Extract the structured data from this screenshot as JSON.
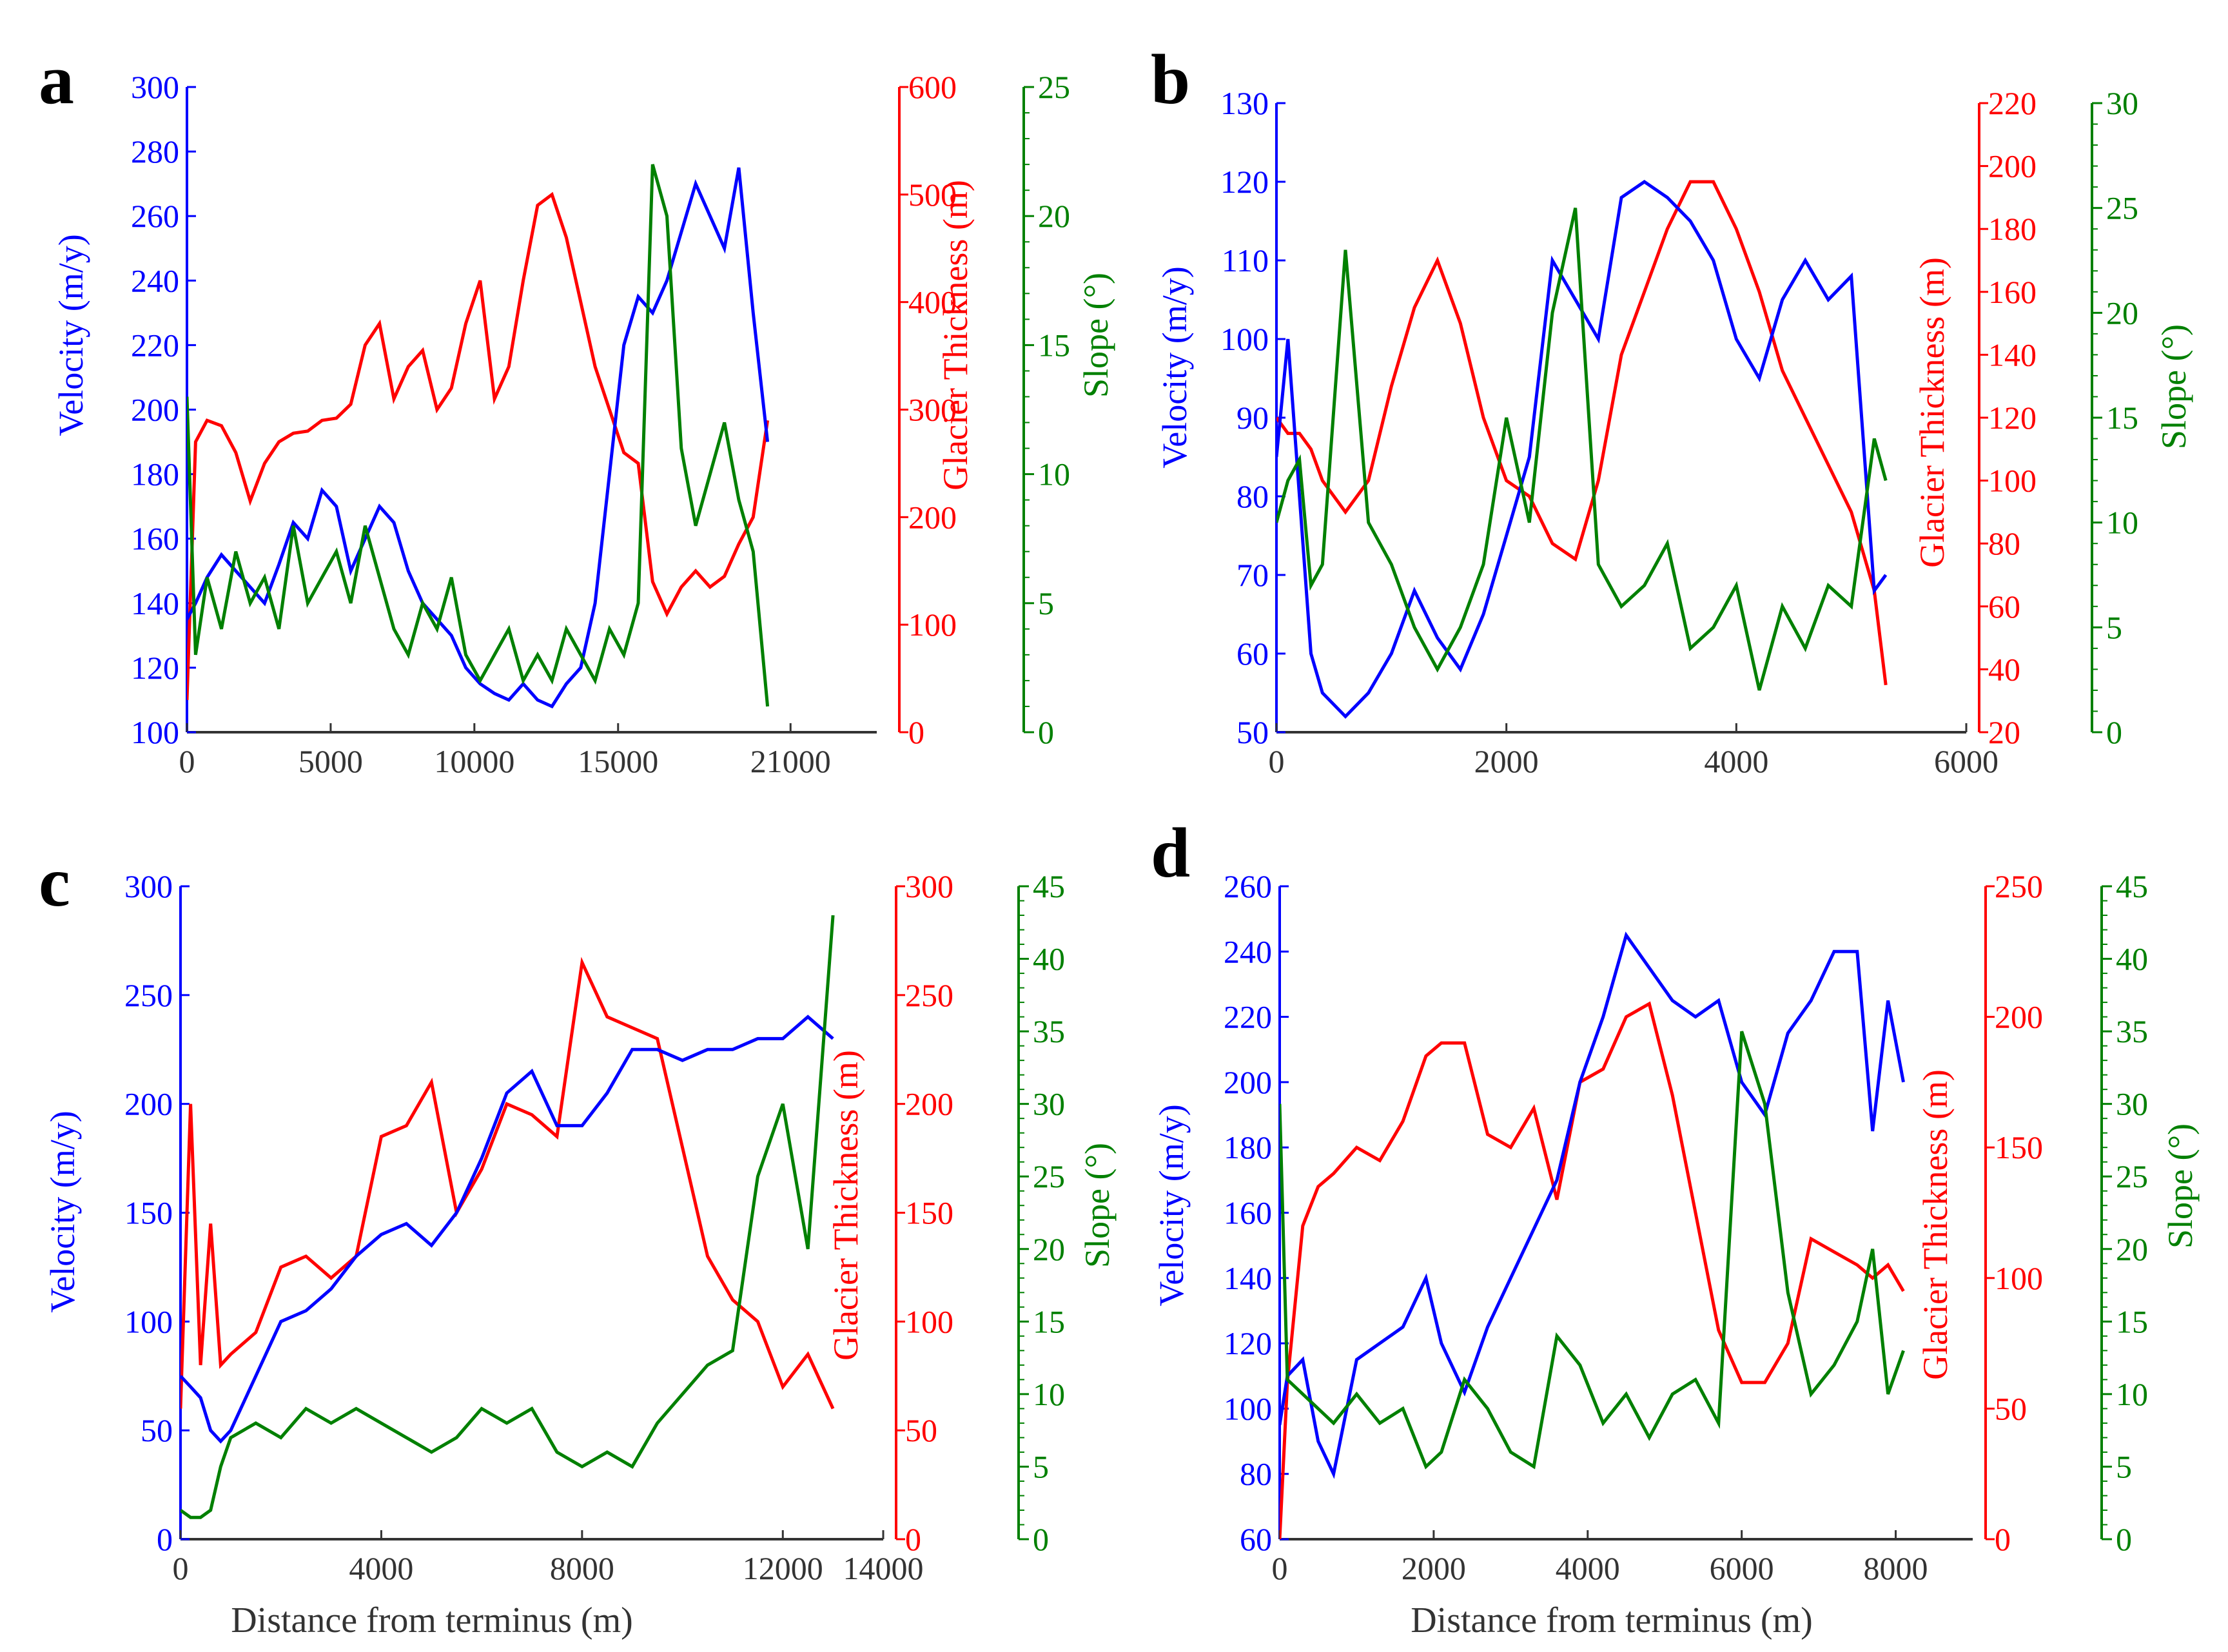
{
  "colors": {
    "velocity": "#0000ff",
    "thickness": "#ff0000",
    "slope": "#008000",
    "axis": "#333333"
  },
  "chart_data": [
    {
      "panel": "a",
      "type": "line",
      "xlabel": "",
      "x_ticks": [
        0,
        5000,
        10000,
        15000,
        21000
      ],
      "xlim": [
        0,
        24000
      ],
      "left_axis": {
        "label": "Velocity (m/y)",
        "lim": [
          100,
          300
        ],
        "ticks": [
          100,
          120,
          140,
          160,
          180,
          200,
          220,
          240,
          260,
          280,
          300
        ]
      },
      "right1_axis": {
        "label": "Glacier Thickness (m)",
        "lim": [
          0,
          600
        ],
        "ticks": [
          0,
          100,
          200,
          300,
          400,
          500,
          600
        ]
      },
      "right2_axis": {
        "label": "Slope (°)",
        "lim": [
          0,
          25
        ],
        "ticks": [
          0,
          5,
          10,
          15,
          20,
          25
        ]
      },
      "series": [
        {
          "name": "Velocity",
          "axis": "left",
          "x": [
            0,
            300,
            700,
            1200,
            1700,
            2200,
            2700,
            3200,
            3700,
            4200,
            4700,
            5200,
            5700,
            6200,
            6700,
            7200,
            7700,
            8200,
            8700,
            9200,
            9700,
            10200,
            10700,
            11200,
            11700,
            12200,
            12700,
            13200,
            13700,
            14200,
            14700,
            15200,
            15700,
            16200,
            16700,
            17200,
            17700,
            18200,
            18700,
            19200,
            19700,
            20200
          ],
          "values": [
            135,
            140,
            148,
            155,
            150,
            145,
            140,
            152,
            165,
            160,
            175,
            170,
            150,
            160,
            170,
            165,
            150,
            140,
            135,
            130,
            120,
            115,
            112,
            110,
            115,
            110,
            108,
            115,
            120,
            140,
            180,
            220,
            235,
            230,
            240,
            255,
            270,
            260,
            250,
            275,
            230,
            190
          ]
        },
        {
          "name": "Glacier Thickness",
          "axis": "right1",
          "x": [
            0,
            300,
            700,
            1200,
            1700,
            2200,
            2700,
            3200,
            3700,
            4200,
            4700,
            5200,
            5700,
            6200,
            6700,
            7200,
            7700,
            8200,
            8700,
            9200,
            9700,
            10200,
            10700,
            11200,
            11700,
            12200,
            12700,
            13200,
            13700,
            14200,
            14700,
            15200,
            15700,
            16200,
            16700,
            17200,
            17700,
            18200,
            18700,
            19200,
            19700,
            20200
          ],
          "values": [
            30,
            270,
            290,
            285,
            260,
            215,
            250,
            270,
            278,
            280,
            290,
            292,
            305,
            360,
            380,
            310,
            340,
            355,
            300,
            320,
            380,
            420,
            310,
            340,
            420,
            490,
            500,
            460,
            400,
            340,
            300,
            260,
            250,
            140,
            110,
            135,
            150,
            135,
            145,
            175,
            200,
            290
          ]
        },
        {
          "name": "Slope",
          "axis": "right2",
          "x": [
            0,
            300,
            700,
            1200,
            1700,
            2200,
            2700,
            3200,
            3700,
            4200,
            4700,
            5200,
            5700,
            6200,
            6700,
            7200,
            7700,
            8200,
            8700,
            9200,
            9700,
            10200,
            10700,
            11200,
            11700,
            12200,
            12700,
            13200,
            13700,
            14200,
            14700,
            15200,
            15700,
            16200,
            16700,
            17200,
            17700,
            18200,
            18700,
            19200,
            19700,
            20200
          ],
          "values": [
            13,
            3,
            6,
            4,
            7,
            5,
            6,
            4,
            8,
            5,
            6,
            7,
            5,
            8,
            6,
            4,
            3,
            5,
            4,
            6,
            3,
            2,
            3,
            4,
            2,
            3,
            2,
            4,
            3,
            2,
            4,
            3,
            5,
            22,
            20,
            11,
            8,
            10,
            12,
            9,
            7,
            1
          ]
        }
      ]
    },
    {
      "panel": "b",
      "type": "line",
      "xlabel": "",
      "x_ticks": [
        0,
        2000,
        4000,
        6000
      ],
      "xlim": [
        0,
        6000
      ],
      "left_axis": {
        "label": "Velocity (m/y)",
        "lim": [
          50,
          130
        ],
        "ticks": [
          50,
          60,
          70,
          80,
          90,
          100,
          110,
          120,
          130
        ]
      },
      "right1_axis": {
        "label": "Glacier Thickness (m)",
        "lim": [
          20,
          220
        ],
        "ticks": [
          20,
          40,
          60,
          80,
          100,
          120,
          140,
          160,
          180,
          200,
          220
        ]
      },
      "right2_axis": {
        "label": "Slope (°)",
        "lim": [
          0,
          30
        ],
        "ticks": [
          0,
          5,
          10,
          15,
          20,
          25,
          30
        ]
      },
      "series": [
        {
          "name": "Velocity",
          "axis": "left",
          "x": [
            0,
            100,
            200,
            300,
            400,
            600,
            800,
            1000,
            1200,
            1400,
            1600,
            1800,
            2000,
            2200,
            2400,
            2600,
            2800,
            3000,
            3200,
            3400,
            3600,
            3800,
            4000,
            4200,
            4400,
            4600,
            4800,
            5000,
            5200,
            5300
          ],
          "values": [
            85,
            100,
            80,
            60,
            55,
            52,
            55,
            60,
            68,
            62,
            58,
            65,
            75,
            85,
            110,
            105,
            100,
            118,
            120,
            118,
            115,
            110,
            100,
            95,
            105,
            110,
            105,
            108,
            68,
            70
          ]
        },
        {
          "name": "Glacier Thickness",
          "axis": "right1",
          "x": [
            0,
            100,
            200,
            300,
            400,
            600,
            800,
            1000,
            1200,
            1400,
            1600,
            1800,
            2000,
            2200,
            2400,
            2600,
            2800,
            3000,
            3200,
            3400,
            3600,
            3800,
            4000,
            4200,
            4400,
            4600,
            4800,
            5000,
            5200,
            5300
          ],
          "values": [
            120,
            115,
            115,
            110,
            100,
            90,
            100,
            130,
            155,
            170,
            150,
            120,
            100,
            95,
            80,
            75,
            100,
            140,
            160,
            180,
            195,
            195,
            180,
            160,
            135,
            120,
            105,
            90,
            65,
            35
          ]
        },
        {
          "name": "Slope",
          "axis": "right2",
          "x": [
            0,
            100,
            200,
            300,
            400,
            600,
            800,
            1000,
            1200,
            1400,
            1600,
            1800,
            2000,
            2200,
            2400,
            2600,
            2800,
            3000,
            3200,
            3400,
            3600,
            3800,
            4000,
            4200,
            4400,
            4600,
            4800,
            5000,
            5200,
            5300
          ],
          "values": [
            10,
            12,
            13,
            7,
            8,
            23,
            10,
            8,
            5,
            3,
            5,
            8,
            15,
            10,
            20,
            25,
            8,
            6,
            7,
            9,
            4,
            5,
            7,
            2,
            6,
            4,
            7,
            6,
            14,
            12
          ]
        }
      ]
    },
    {
      "panel": "c",
      "type": "line",
      "xlabel": "Distance from terminus (m)",
      "x_ticks": [
        0,
        4000,
        8000,
        12000,
        14000
      ],
      "xlim": [
        0,
        14000
      ],
      "left_axis": {
        "label": "Velocity (m/y)",
        "lim": [
          0,
          300
        ],
        "ticks": [
          0,
          50,
          100,
          150,
          200,
          250,
          300
        ]
      },
      "right1_axis": {
        "label": "Glacier Thickness (m)",
        "lim": [
          0,
          300
        ],
        "ticks": [
          0,
          50,
          100,
          150,
          200,
          250,
          300
        ]
      },
      "right2_axis": {
        "label": "Slope (°)",
        "lim": [
          0,
          45
        ],
        "ticks": [
          0,
          5,
          10,
          15,
          20,
          25,
          30,
          35,
          40,
          45
        ]
      },
      "series": [
        {
          "name": "Velocity",
          "axis": "left",
          "x": [
            0,
            200,
            400,
            600,
            800,
            1000,
            1500,
            2000,
            2500,
            3000,
            3500,
            4000,
            4500,
            5000,
            5500,
            6000,
            6500,
            7000,
            7500,
            8000,
            8500,
            9000,
            9500,
            10000,
            10500,
            11000,
            11500,
            12000,
            12500,
            13000
          ],
          "values": [
            75,
            70,
            65,
            50,
            45,
            50,
            75,
            100,
            105,
            115,
            130,
            140,
            145,
            135,
            150,
            175,
            205,
            215,
            190,
            190,
            205,
            225,
            225,
            220,
            225,
            225,
            230,
            230,
            240,
            230
          ]
        },
        {
          "name": "Glacier Thickness",
          "axis": "right1",
          "x": [
            0,
            200,
            400,
            600,
            800,
            1000,
            1500,
            2000,
            2500,
            3000,
            3500,
            4000,
            4500,
            5000,
            5500,
            6000,
            6500,
            7000,
            7500,
            8000,
            8500,
            9000,
            9500,
            10000,
            10500,
            11000,
            11500,
            12000,
            12500,
            13000
          ],
          "values": [
            60,
            200,
            80,
            145,
            80,
            85,
            95,
            125,
            130,
            120,
            130,
            185,
            190,
            210,
            150,
            170,
            200,
            195,
            185,
            265,
            240,
            235,
            230,
            180,
            130,
            110,
            100,
            70,
            85,
            60
          ]
        },
        {
          "name": "Slope",
          "axis": "right2",
          "x": [
            0,
            200,
            400,
            600,
            800,
            1000,
            1500,
            2000,
            2500,
            3000,
            3500,
            4000,
            4500,
            5000,
            5500,
            6000,
            6500,
            7000,
            7500,
            8000,
            8500,
            9000,
            9500,
            10000,
            10500,
            11000,
            11500,
            12000,
            12500,
            13000
          ],
          "values": [
            2,
            1.5,
            1.5,
            2,
            5,
            7,
            8,
            7,
            9,
            8,
            9,
            8,
            7,
            6,
            7,
            9,
            8,
            9,
            6,
            5,
            6,
            5,
            8,
            10,
            12,
            13,
            25,
            30,
            20,
            43
          ]
        }
      ]
    },
    {
      "panel": "d",
      "type": "line",
      "xlabel": "Distance from terminus (m)",
      "x_ticks": [
        0,
        2000,
        4000,
        6000,
        8000
      ],
      "xlim": [
        0,
        9000
      ],
      "left_axis": {
        "label": "Velocity (m/y)",
        "lim": [
          60,
          260
        ],
        "ticks": [
          60,
          80,
          100,
          120,
          140,
          160,
          180,
          200,
          220,
          240,
          260
        ]
      },
      "right1_axis": {
        "label": "Glacier Thickness (m)",
        "lim": [
          0,
          250
        ],
        "ticks": [
          0,
          50,
          100,
          150,
          200,
          250
        ]
      },
      "right2_axis": {
        "label": "Slope (°)",
        "lim": [
          0,
          45
        ],
        "ticks": [
          0,
          5,
          10,
          15,
          20,
          25,
          30,
          35,
          40,
          45
        ]
      },
      "series": [
        {
          "name": "Velocity",
          "axis": "left",
          "x": [
            0,
            100,
            300,
            500,
            700,
            1000,
            1300,
            1600,
            1900,
            2100,
            2400,
            2700,
            3000,
            3300,
            3600,
            3900,
            4200,
            4500,
            4800,
            5100,
            5400,
            5700,
            6000,
            6300,
            6600,
            6900,
            7200,
            7500,
            7700,
            7900,
            8100
          ],
          "values": [
            95,
            110,
            115,
            90,
            80,
            115,
            120,
            125,
            140,
            120,
            105,
            125,
            140,
            155,
            170,
            200,
            220,
            245,
            235,
            225,
            220,
            225,
            200,
            190,
            215,
            225,
            240,
            240,
            185,
            225,
            200
          ]
        },
        {
          "name": "Glacier Thickness",
          "axis": "right1",
          "x": [
            0,
            100,
            300,
            500,
            700,
            1000,
            1300,
            1600,
            1900,
            2100,
            2400,
            2700,
            3000,
            3300,
            3600,
            3900,
            4200,
            4500,
            4800,
            5100,
            5400,
            5700,
            6000,
            6300,
            6600,
            6900,
            7200,
            7500,
            7700,
            7900,
            8100
          ],
          "values": [
            0,
            60,
            120,
            135,
            140,
            150,
            145,
            160,
            185,
            190,
            190,
            155,
            150,
            165,
            130,
            175,
            180,
            200,
            205,
            170,
            125,
            80,
            60,
            60,
            75,
            115,
            110,
            105,
            100,
            105,
            95
          ]
        },
        {
          "name": "Slope",
          "axis": "right2",
          "x": [
            0,
            100,
            300,
            500,
            700,
            1000,
            1300,
            1600,
            1900,
            2100,
            2400,
            2700,
            3000,
            3300,
            3600,
            3900,
            4200,
            4500,
            4800,
            5100,
            5400,
            5700,
            6000,
            6300,
            6600,
            6900,
            7200,
            7500,
            7700,
            7900,
            8100
          ],
          "values": [
            30,
            11,
            10,
            9,
            8,
            10,
            8,
            9,
            5,
            6,
            11,
            9,
            6,
            5,
            14,
            12,
            8,
            10,
            7,
            10,
            11,
            8,
            35,
            30,
            17,
            10,
            12,
            15,
            20,
            10,
            13
          ]
        }
      ]
    }
  ]
}
